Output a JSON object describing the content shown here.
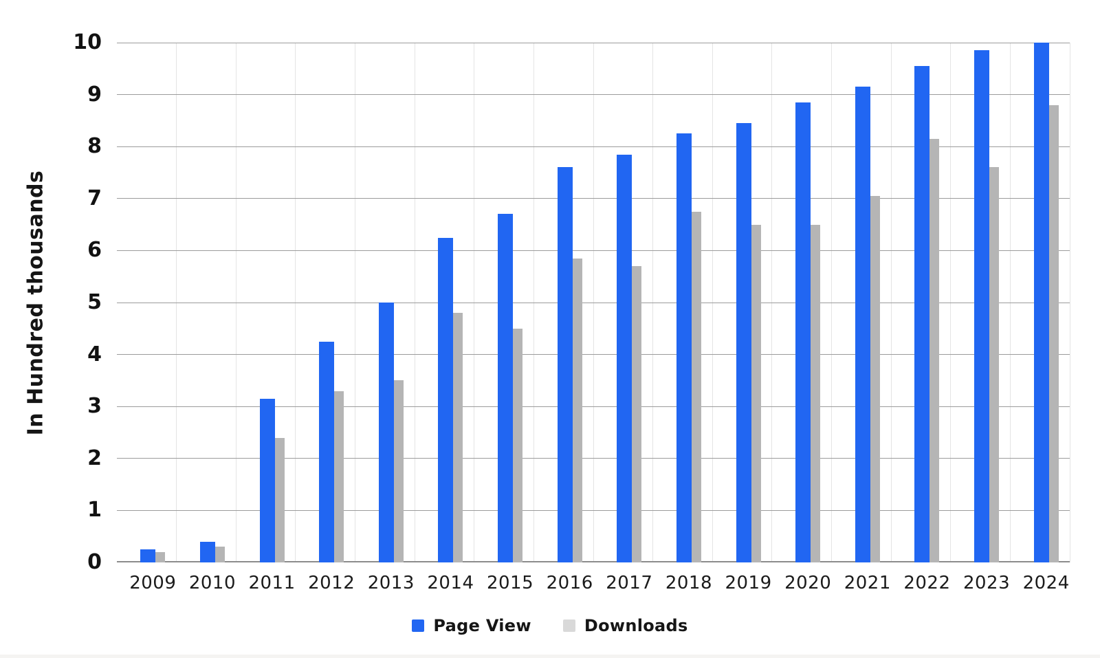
{
  "chart_data": {
    "type": "bar",
    "title": "",
    "xlabel": "",
    "ylabel": "In Hundred thousands",
    "ylim": [
      0,
      10
    ],
    "yticks": [
      0,
      1,
      2,
      3,
      4,
      5,
      6,
      7,
      8,
      9,
      10
    ],
    "categories": [
      "2009",
      "2010",
      "2011",
      "2012",
      "2013",
      "2014",
      "2015",
      "2016",
      "2017",
      "2018",
      "2019",
      "2020",
      "2021",
      "2022",
      "2023",
      "2024"
    ],
    "series": [
      {
        "name": "Page View",
        "color": "#2166F2",
        "legend_color": "#2166F2",
        "values": [
          0.25,
          0.4,
          3.15,
          4.25,
          5.0,
          6.25,
          6.7,
          7.6,
          7.85,
          8.25,
          8.45,
          8.85,
          9.15,
          9.55,
          9.85,
          10.0
        ]
      },
      {
        "name": "Downloads",
        "color": "#B5B5B5",
        "legend_color": "#D9D9D9",
        "values": [
          0.2,
          0.3,
          2.4,
          3.3,
          3.5,
          4.8,
          4.5,
          5.85,
          5.7,
          6.75,
          6.5,
          6.5,
          7.05,
          8.15,
          7.6,
          8.8
        ]
      }
    ],
    "legend_position": "bottom",
    "grid": {
      "horizontal": true,
      "vertical": true
    },
    "colors": {
      "hgrid": "#9B9B9B",
      "vgrid": "#E4E4E4",
      "axis_line": "#8C8C8C",
      "text": "#161616"
    }
  }
}
